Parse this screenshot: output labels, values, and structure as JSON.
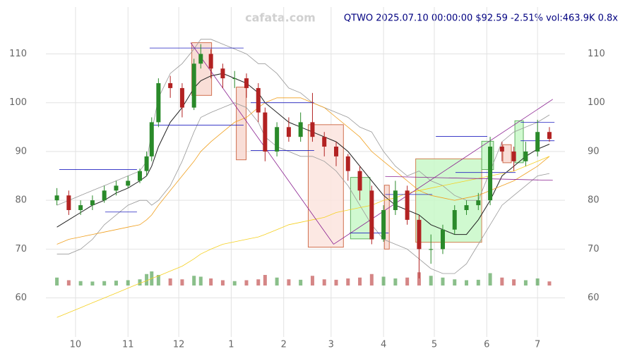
{
  "chart_data": {
    "type": "candlestick",
    "title": "QTWO 2025.07.10 00:00:00 $92.59 -2.51% vol:463.9K 0.8x",
    "watermark": "cafata.com",
    "x": [
      -11,
      -4,
      3,
      10,
      17,
      24,
      31,
      38,
      42,
      45,
      49,
      56,
      63,
      70,
      74,
      80,
      87,
      94,
      101,
      108,
      112,
      119,
      126,
      133,
      140,
      147,
      154,
      161,
      168,
      175,
      182,
      189,
      196,
      203,
      210,
      217,
      224,
      231,
      238,
      245,
      252,
      259,
      266,
      273,
      280
    ],
    "open": [
      80,
      81,
      78,
      79,
      80,
      82,
      83,
      84,
      86,
      89,
      96,
      104,
      103,
      99,
      108,
      110,
      107,
      105,
      105,
      103,
      98,
      90,
      95,
      93,
      96,
      93,
      91,
      89,
      86,
      82,
      72,
      78,
      82,
      76,
      70,
      70,
      74,
      78,
      79,
      80,
      91,
      90,
      88,
      90,
      94
    ],
    "high": [
      82.5,
      82,
      80,
      81,
      83,
      84,
      85,
      86.5,
      90,
      97,
      105,
      105.5,
      104,
      109,
      112,
      111,
      108,
      106.5,
      106,
      104,
      99,
      96,
      97,
      98,
      102,
      94,
      92,
      89.5,
      87,
      83,
      79,
      84,
      83,
      77,
      73,
      75,
      79,
      80,
      81.5,
      93,
      92,
      91,
      92,
      96.5,
      95
    ],
    "low": [
      79,
      77,
      77,
      78,
      79.5,
      81,
      82.5,
      83.5,
      85,
      88,
      95,
      101,
      97,
      98.5,
      107,
      105,
      103,
      103,
      101,
      96,
      88,
      89,
      92,
      92,
      92,
      89,
      87,
      84,
      80,
      71,
      71.5,
      77,
      75,
      64,
      67,
      69,
      73,
      77,
      78,
      79,
      88,
      86,
      87,
      89,
      92
    ],
    "close": [
      81,
      78,
      79,
      80,
      82,
      83,
      84,
      86,
      89,
      96,
      104,
      103,
      99,
      108,
      110,
      107,
      105,
      105,
      103,
      98,
      90,
      95,
      93,
      96,
      93,
      91,
      89,
      86,
      82,
      72,
      78,
      82,
      76,
      70,
      70,
      74,
      78,
      79,
      80,
      91,
      90,
      88,
      90,
      94,
      92.59
    ],
    "up_color": "#2a8a2a",
    "down_color": "#b22222",
    "overlays": [
      {
        "color": "#222222",
        "values": [
          74.5,
          76,
          77.5,
          79,
          80,
          81.5,
          82.5,
          84,
          85,
          87,
          91,
          96,
          99,
          103,
          104.5,
          105.5,
          106,
          105,
          104,
          102,
          100,
          98,
          96,
          95,
          94,
          93,
          92,
          90,
          87,
          84,
          81,
          79,
          78,
          77,
          75,
          74,
          73,
          73,
          76,
          80,
          85,
          87,
          89,
          90.5,
          91.5
        ]
      },
      {
        "color": "#999999",
        "values": [
          79,
          80,
          81,
          82,
          83,
          84,
          85,
          86,
          88,
          94,
          101,
          106,
          108,
          111,
          113,
          113,
          112,
          111,
          110,
          108,
          108,
          106,
          103,
          102,
          100,
          99,
          98,
          97,
          95,
          94,
          90,
          87,
          85,
          86,
          84,
          83,
          81,
          80,
          80,
          86,
          92,
          94,
          95,
          96,
          97.5
        ]
      },
      {
        "color": "#999999",
        "values": [
          69,
          69,
          70,
          72,
          75,
          77,
          79,
          80,
          80,
          79,
          80,
          83,
          88,
          94,
          97,
          98,
          99,
          100,
          99,
          96,
          93,
          91,
          90,
          89,
          89,
          88,
          86,
          83,
          79,
          75,
          72,
          71,
          70,
          68,
          66,
          65,
          65,
          67,
          71,
          75,
          79,
          81,
          83,
          85,
          85.5
        ]
      },
      {
        "color": "#f0a020",
        "values": [
          71,
          72,
          72.5,
          73,
          73.5,
          74,
          74.5,
          75,
          76,
          77,
          79,
          82,
          85,
          88,
          90,
          92,
          94,
          96,
          97,
          99,
          100,
          101,
          101,
          101,
          100,
          99,
          97,
          95,
          93,
          90,
          88,
          86,
          84,
          82,
          81,
          80.5,
          80,
          80.5,
          81,
          82,
          83,
          84,
          85.5,
          87,
          89
        ]
      },
      {
        "color": "#f5d020",
        "values": [
          56,
          57,
          58,
          59,
          60,
          61,
          62,
          63,
          63.5,
          64,
          64.5,
          65.5,
          66.5,
          68,
          69,
          70,
          71,
          71.5,
          72,
          72.5,
          73,
          74,
          75,
          75.5,
          76,
          76.5,
          77.5,
          78,
          78.5,
          79,
          80,
          80.5,
          81.5,
          82,
          82.5,
          83,
          83.5,
          84,
          84.5,
          85,
          85.5,
          86,
          87,
          88,
          89
        ]
      }
    ],
    "volume": [
      900,
      600,
      500,
      450,
      500,
      550,
      600,
      700,
      1300,
      1600,
      1200,
      800,
      700,
      1100,
      1000,
      800,
      600,
      500,
      600,
      700,
      1200,
      900,
      700,
      650,
      1100,
      700,
      650,
      800,
      900,
      1300,
      1000,
      800,
      900,
      1500,
      1100,
      900,
      700,
      600,
      650,
      1400,
      900,
      700,
      600,
      800,
      464
    ],
    "volume_ylim": [
      0,
      2000
    ],
    "zones": [
      {
        "x": [
          68.7,
          80.4
        ],
        "y": [
          101.5,
          112.3
        ],
        "fill": "#f8d8d0",
        "stroke": "#d07050"
      },
      {
        "x": [
          95,
          100.8
        ],
        "y": [
          88.3,
          103.2
        ],
        "fill": "#f8d8d0",
        "stroke": "#d07050"
      },
      {
        "x": [
          137.5,
          158.3
        ],
        "y": [
          70.4,
          95.5
        ],
        "fill": "#fbe4de",
        "stroke": "#d07050"
      },
      {
        "x": [
          162.5,
          174
        ],
        "y": [
          72.1,
          84.7
        ],
        "fill": "#c8f8c8",
        "stroke": "#60b060"
      },
      {
        "x": [
          182.5,
          185.4
        ],
        "y": [
          70,
          83.1
        ],
        "fill": "#f8d8d0",
        "stroke": "#d07050"
      },
      {
        "x": [
          201,
          240
        ],
        "y": [
          71.4,
          88.5
        ],
        "fill": "#c8f8c8",
        "stroke": "#d08050"
      },
      {
        "x": [
          240,
          247
        ],
        "y": [
          86.3,
          92.1
        ],
        "fill": "#c8f8c8",
        "stroke": "#60b060"
      },
      {
        "x": [
          252.5,
          257.5
        ],
        "y": [
          87.7,
          91.4
        ],
        "fill": "#f8d8d0",
        "stroke": "#d07050"
      },
      {
        "x": [
          259.6,
          264.6
        ],
        "y": [
          87.7,
          96.3
        ],
        "fill": "#c8f8c8",
        "stroke": "#60b060"
      }
    ],
    "levels": [
      {
        "x": [
          -9.6,
          36.3
        ],
        "y": 86.3
      },
      {
        "x": [
          17.5,
          36.3
        ],
        "y": 77.6
      },
      {
        "x": [
          43.8,
          99.3
        ],
        "y": 111.2
      },
      {
        "x": [
          43.8,
          99.3
        ],
        "y": 95.4
      },
      {
        "x": [
          103.5,
          141
        ],
        "y": 100
      },
      {
        "x": [
          103.5,
          141
        ],
        "y": 90.2
      },
      {
        "x": [
          162,
          185
        ],
        "y": 73.3
      },
      {
        "x": [
          183,
          210.8
        ],
        "y": 81.2
      },
      {
        "x": [
          212.9,
          243.3
        ],
        "y": 93.1
      },
      {
        "x": [
          224.5,
          260
        ],
        "y": 85.7
      },
      {
        "x": [
          263,
          283
        ],
        "y": 96
      },
      {
        "x": [
          263,
          283
        ],
        "y": 92.2
      }
    ],
    "level_color": "#2020c0",
    "trendlines": [
      {
        "x": [
          68,
          152.5
        ],
        "y": [
          112.3,
          71
        ]
      },
      {
        "x": [
          152.5,
          282
        ],
        "y": [
          71,
          100.7
        ]
      },
      {
        "x": [
          183,
          282
        ],
        "y": [
          84.9,
          84.1
        ]
      }
    ],
    "trend_color": "#8a2090",
    "xlim": [
      -17.5,
      289.2
    ],
    "ylim": [
      52,
      119.6
    ],
    "xticks": [
      {
        "value": 0,
        "label": "10"
      },
      {
        "value": 31,
        "label": "11"
      },
      {
        "value": 61,
        "label": "12"
      },
      {
        "value": 92,
        "label": "1"
      },
      {
        "value": 123,
        "label": "2"
      },
      {
        "value": 151,
        "label": "3"
      },
      {
        "value": 182,
        "label": "4"
      },
      {
        "value": 212,
        "label": "5"
      },
      {
        "value": 243,
        "label": "6"
      },
      {
        "value": 273,
        "label": "7"
      }
    ],
    "yticks": [
      60,
      70,
      80,
      90,
      100,
      110
    ],
    "grid": true
  }
}
